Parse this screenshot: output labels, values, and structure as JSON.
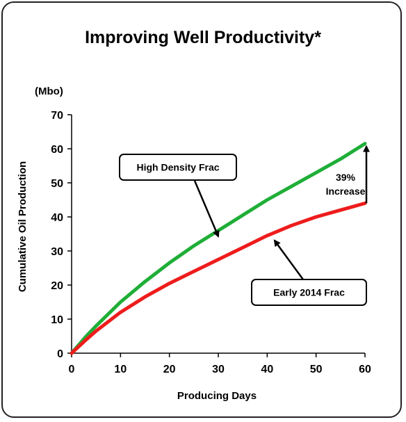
{
  "chart_data": {
    "type": "line",
    "title": "Improving Well Productivity*",
    "unit_label": "(Mbo)",
    "xlabel": "Producing Days",
    "ylabel": "Cumulative Oil  Production",
    "xlim": [
      0,
      60
    ],
    "ylim": [
      0,
      70
    ],
    "x_ticks": [
      "0",
      "10",
      "20",
      "30",
      "40",
      "50",
      "60"
    ],
    "y_ticks": [
      "0",
      "10",
      "20",
      "30",
      "40",
      "50",
      "60",
      "70"
    ],
    "grid": false,
    "series": [
      {
        "name": "High Density Frac",
        "color": "#1fae37",
        "x": [
          0,
          3,
          5,
          10,
          15,
          20,
          25,
          30,
          35,
          40,
          45,
          50,
          55,
          60
        ],
        "y": [
          0,
          5,
          8,
          15,
          21,
          26.5,
          31.5,
          36,
          40.5,
          45,
          49,
          53,
          57,
          61.5
        ]
      },
      {
        "name": "Early 2014 Frac",
        "color": "#ee1c1c",
        "x": [
          0,
          3,
          5,
          10,
          15,
          20,
          25,
          30,
          35,
          40,
          45,
          50,
          55,
          60
        ],
        "y": [
          0,
          4,
          6.5,
          12,
          16.5,
          20.5,
          24,
          27.5,
          31,
          34.5,
          37.5,
          40,
          42,
          44
        ]
      }
    ],
    "annotations": {
      "increase": "39%\nIncrease",
      "callouts": [
        "High Density Frac",
        "Early 2014 Frac"
      ]
    }
  }
}
